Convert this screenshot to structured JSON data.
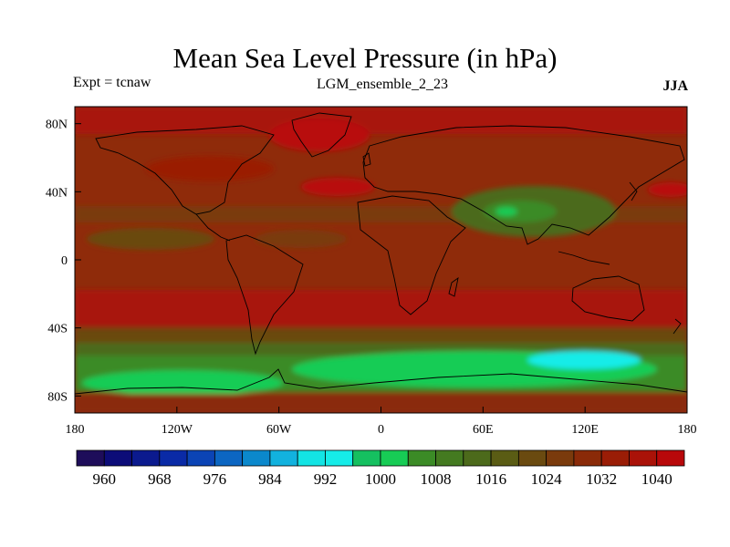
{
  "header": {
    "title": "Mean Sea Level Pressure (in hPa)",
    "experiment": "Expt = tcnaw",
    "run_name": "LGM_ensemble_2_23",
    "season": "JJA"
  },
  "axes": {
    "lat_ticks": [
      "80N",
      "40N",
      "0",
      "40S",
      "80S"
    ],
    "lat_values": [
      80,
      40,
      0,
      -40,
      -80
    ],
    "lon_ticks": [
      "180",
      "120W",
      "60W",
      "0",
      "60E",
      "120E",
      "180"
    ],
    "lon_values": [
      -180,
      -120,
      -60,
      0,
      60,
      120,
      180
    ],
    "lat_range": [
      -90,
      90
    ],
    "lon_range": [
      -180,
      180
    ]
  },
  "colorbar": {
    "labels": [
      "960",
      "968",
      "976",
      "984",
      "992",
      "1000",
      "1008",
      "1016",
      "1024",
      "1032",
      "1040"
    ],
    "colors": [
      "#1e0d5a",
      "#0c0c78",
      "#0b1a8e",
      "#0a2aa6",
      "#0b44b5",
      "#0c66c2",
      "#0b88cc",
      "#12b2de",
      "#13e4e4",
      "#16ece8",
      "#15c060",
      "#17cc55",
      "#3b8b26",
      "#447a20",
      "#4c6a1b",
      "#5a5c14",
      "#6a4a10",
      "#7a3a0c",
      "#8a2a08",
      "#9a1d06",
      "#aa1208",
      "#b8080a"
    ]
  },
  "style": {
    "base_color": "#8f2b0a",
    "coast_color": "#000000"
  }
}
